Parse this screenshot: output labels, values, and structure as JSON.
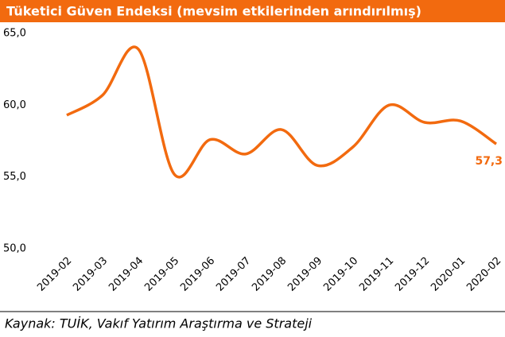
{
  "chart_data": {
    "type": "line",
    "title": "Tüketici Güven Endeksi (mevsim etkilerinden arındırılmış)",
    "source": "Kaynak: TUİK, Vakıf Yatırım Araştırma ve Strateji",
    "categories": [
      "2019-02",
      "2019-03",
      "2019-04",
      "2019-05",
      "2019-06",
      "2019-07",
      "2019-08",
      "2019-09",
      "2019-10",
      "2019-11",
      "2019-12",
      "2020-01",
      "2020-02"
    ],
    "series": [
      {
        "name": "Tüketici Güven Endeksi",
        "color": "#f26a0f",
        "values": [
          59.3,
          60.7,
          63.9,
          55.2,
          57.6,
          56.6,
          58.3,
          55.8,
          57.1,
          60.0,
          58.8,
          58.9,
          57.3
        ],
        "value_labels": [
          null,
          null,
          null,
          null,
          null,
          null,
          null,
          null,
          null,
          null,
          null,
          null,
          "57,3"
        ]
      }
    ],
    "ylim": [
      50,
      65
    ],
    "yticks": [
      {
        "value": 50,
        "label": "50,0"
      },
      {
        "value": 55,
        "label": "55,0"
      },
      {
        "value": 60,
        "label": "60,0"
      },
      {
        "value": 65,
        "label": "65,0"
      }
    ],
    "grid": false
  }
}
